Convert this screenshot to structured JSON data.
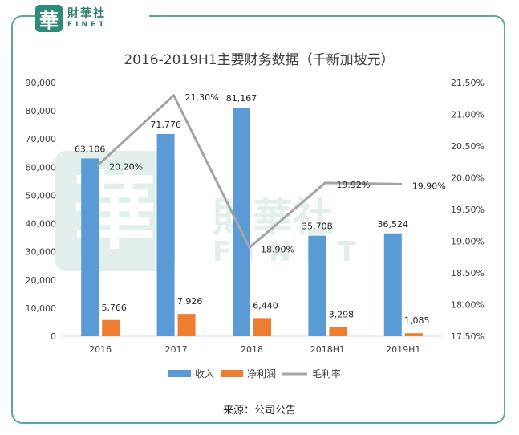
{
  "logo": {
    "mark": "華",
    "name_cn": "財華社",
    "name_en": "FINET"
  },
  "watermark": {
    "mark": "華",
    "name_cn": "財華社",
    "name_en": "FINET"
  },
  "source_text": "来源：公司公告",
  "colors": {
    "frame": "#5aa89a",
    "revenue": "#5b9bd5",
    "net_profit": "#ed7d31",
    "gross_margin": "#a5a5a5"
  },
  "chart_data": {
    "type": "bar",
    "title": "2016-2019H1主要财务数据（千新加坡元）",
    "categories": [
      "2016",
      "2017",
      "2018",
      "2018H1",
      "2019H1"
    ],
    "ylim": [
      0,
      90000
    ],
    "y_ticks": [
      "0",
      "10,000",
      "20,000",
      "30,000",
      "40,000",
      "50,000",
      "60,000",
      "70,000",
      "80,000",
      "90,000"
    ],
    "y2lim": [
      17.5,
      21.5
    ],
    "y2_ticks": [
      "17.50%",
      "18.00%",
      "18.50%",
      "19.00%",
      "19.50%",
      "20.00%",
      "20.50%",
      "21.00%",
      "21.50%"
    ],
    "grid": false,
    "legend_position": "bottom",
    "series": [
      {
        "name": "收入",
        "kind": "bar",
        "axis": "left",
        "values": [
          63106,
          71776,
          81167,
          35708,
          36524
        ],
        "labels": [
          "63,106",
          "71,776",
          "81,167",
          "35,708",
          "36,524"
        ]
      },
      {
        "name": "净利润",
        "kind": "bar",
        "axis": "left",
        "values": [
          5766,
          7926,
          6440,
          3298,
          1085
        ],
        "labels": [
          "5,766",
          "7,926",
          "6,440",
          "3,298",
          "1,085"
        ]
      },
      {
        "name": "毛利率",
        "kind": "line",
        "axis": "right",
        "values": [
          20.2,
          21.3,
          18.9,
          19.92,
          19.9
        ],
        "labels": [
          "20.20%",
          "21.30%",
          "18.90%",
          "19.92%",
          "19.90%"
        ]
      }
    ]
  }
}
